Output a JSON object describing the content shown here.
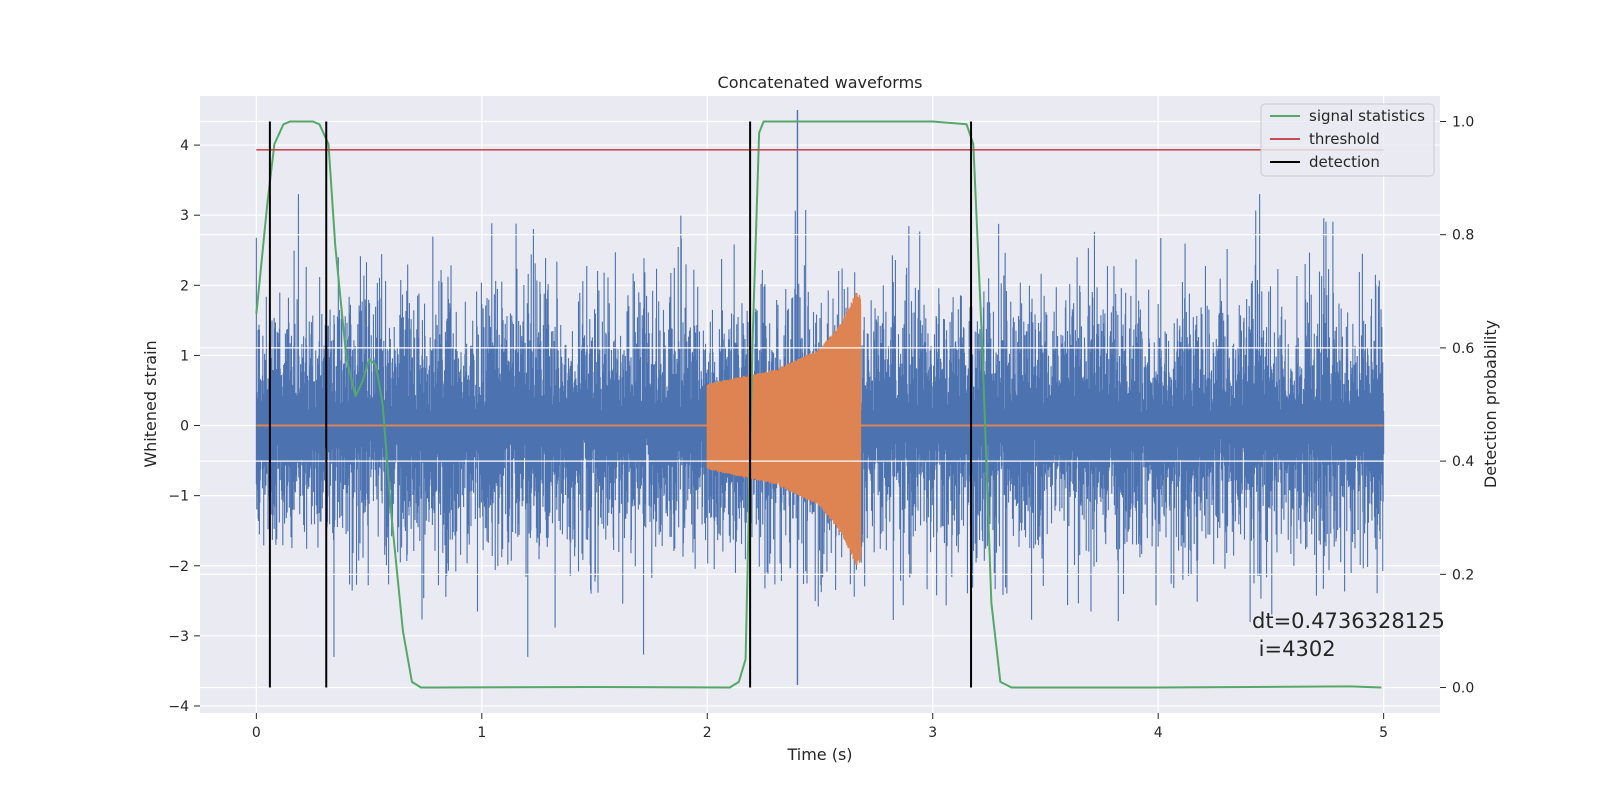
{
  "chart_data": {
    "type": "line",
    "title": "Concatenated waveforms",
    "xlabel": "Time (s)",
    "ylabel": "Whitened strain",
    "y2label": "Detection probability",
    "xlim": [
      -0.25,
      5.25
    ],
    "ylim": [
      -4.1,
      4.7
    ],
    "y2lim": [
      -0.045,
      1.045
    ],
    "xticks": [
      0,
      1,
      2,
      3,
      4,
      5
    ],
    "yticks": [
      -4,
      -3,
      -2,
      -1,
      0,
      1,
      2,
      3,
      4
    ],
    "y2ticks": [
      0.0,
      0.2,
      0.4,
      0.6,
      0.8,
      1.0
    ],
    "xtick_labels": [
      "0",
      "1",
      "2",
      "3",
      "4",
      "5"
    ],
    "ytick_labels": [
      "−4",
      "−3",
      "−2",
      "−1",
      "0",
      "1",
      "2",
      "3",
      "4"
    ],
    "y2tick_labels": [
      "0.0",
      "0.2",
      "0.4",
      "0.6",
      "0.8",
      "1.0"
    ],
    "grid": true,
    "legend_position": "upper-right",
    "noise": {
      "color": "#4C72B0",
      "x_range": [
        0,
        5
      ],
      "typical_amplitude": 1.2,
      "peak_max": 4.5,
      "peak_min": -3.7
    },
    "injected_signal": {
      "color": "#DD8452",
      "start": 2.0,
      "end": 2.68,
      "envelope": [
        {
          "x": 2.0,
          "y": 0.6
        },
        {
          "x": 2.3,
          "y": 0.8
        },
        {
          "x": 2.5,
          "y": 1.1
        },
        {
          "x": 2.6,
          "y": 1.5
        },
        {
          "x": 2.66,
          "y": 1.9
        }
      ]
    },
    "series": [
      {
        "name": "signal statistics",
        "color": "#55A868",
        "axis": "right",
        "x": [
          0.0,
          0.05,
          0.08,
          0.12,
          0.15,
          0.2,
          0.25,
          0.28,
          0.32,
          0.35,
          0.4,
          0.44,
          0.47,
          0.5,
          0.53,
          0.56,
          0.6,
          0.65,
          0.69,
          0.73,
          0.8,
          1.5,
          2.1,
          2.14,
          2.17,
          2.2,
          2.23,
          2.25,
          2.6,
          3.0,
          3.15,
          3.18,
          3.22,
          3.26,
          3.3,
          3.35,
          4.0,
          4.85,
          4.99
        ],
        "y": [
          0.66,
          0.86,
          0.96,
          0.995,
          1.0,
          1.0,
          1.0,
          0.995,
          0.96,
          0.78,
          0.58,
          0.515,
          0.54,
          0.58,
          0.57,
          0.5,
          0.3,
          0.1,
          0.01,
          0.0,
          0.0,
          0.001,
          0.0,
          0.01,
          0.05,
          0.6,
          0.98,
          1.0,
          1.0,
          1.0,
          0.995,
          0.96,
          0.6,
          0.15,
          0.01,
          0.0,
          0.0,
          0.002,
          0.0
        ]
      },
      {
        "name": "threshold",
        "color": "#C44E52",
        "axis": "right",
        "x": [
          0,
          5
        ],
        "y": [
          0.95,
          0.95
        ]
      },
      {
        "name": "detection",
        "color": "#000000",
        "axis": "right",
        "type": "vlines",
        "x": [
          0.06,
          0.31,
          2.19,
          3.17
        ],
        "ymin": 0.0,
        "ymax": 1.0
      }
    ],
    "annotation": {
      "line1": "dt=0.4736328125",
      "line2": " i=4302"
    }
  }
}
